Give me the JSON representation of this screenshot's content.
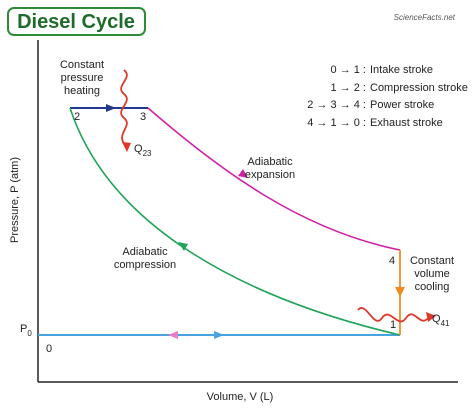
{
  "header": {
    "title": "Diesel Cycle",
    "logo": "ScienceFacts.net"
  },
  "legend": [
    {
      "states": "0 → 1 :",
      "label": "Intake stroke"
    },
    {
      "states": "1 → 2 :",
      "label": "Compression stroke"
    },
    {
      "states": "2 → 3 → 4 :",
      "label": "Power stroke"
    },
    {
      "states": "4 → 1 → 0 :",
      "label": "Exhaust stroke"
    }
  ],
  "axes": {
    "y_label": "Pressure, P (atm)",
    "x_label": "Volume, V (L)"
  },
  "points": {
    "p0": "0",
    "p1": "1",
    "p2": "2",
    "p3": "3",
    "p4": "4"
  },
  "annotations": {
    "heating": [
      "Constant",
      "pressure",
      "heating"
    ],
    "expansion": [
      "Adiabatic",
      "expansion"
    ],
    "compression": [
      "Adiabatic",
      "compression"
    ],
    "cooling": [
      "Constant",
      "volume",
      "cooling"
    ],
    "q23": {
      "symbol": "Q",
      "subscript": "23"
    },
    "q41": {
      "symbol": "Q",
      "subscript": "41"
    },
    "p0": {
      "symbol": "P",
      "subscript": "0"
    }
  }
}
